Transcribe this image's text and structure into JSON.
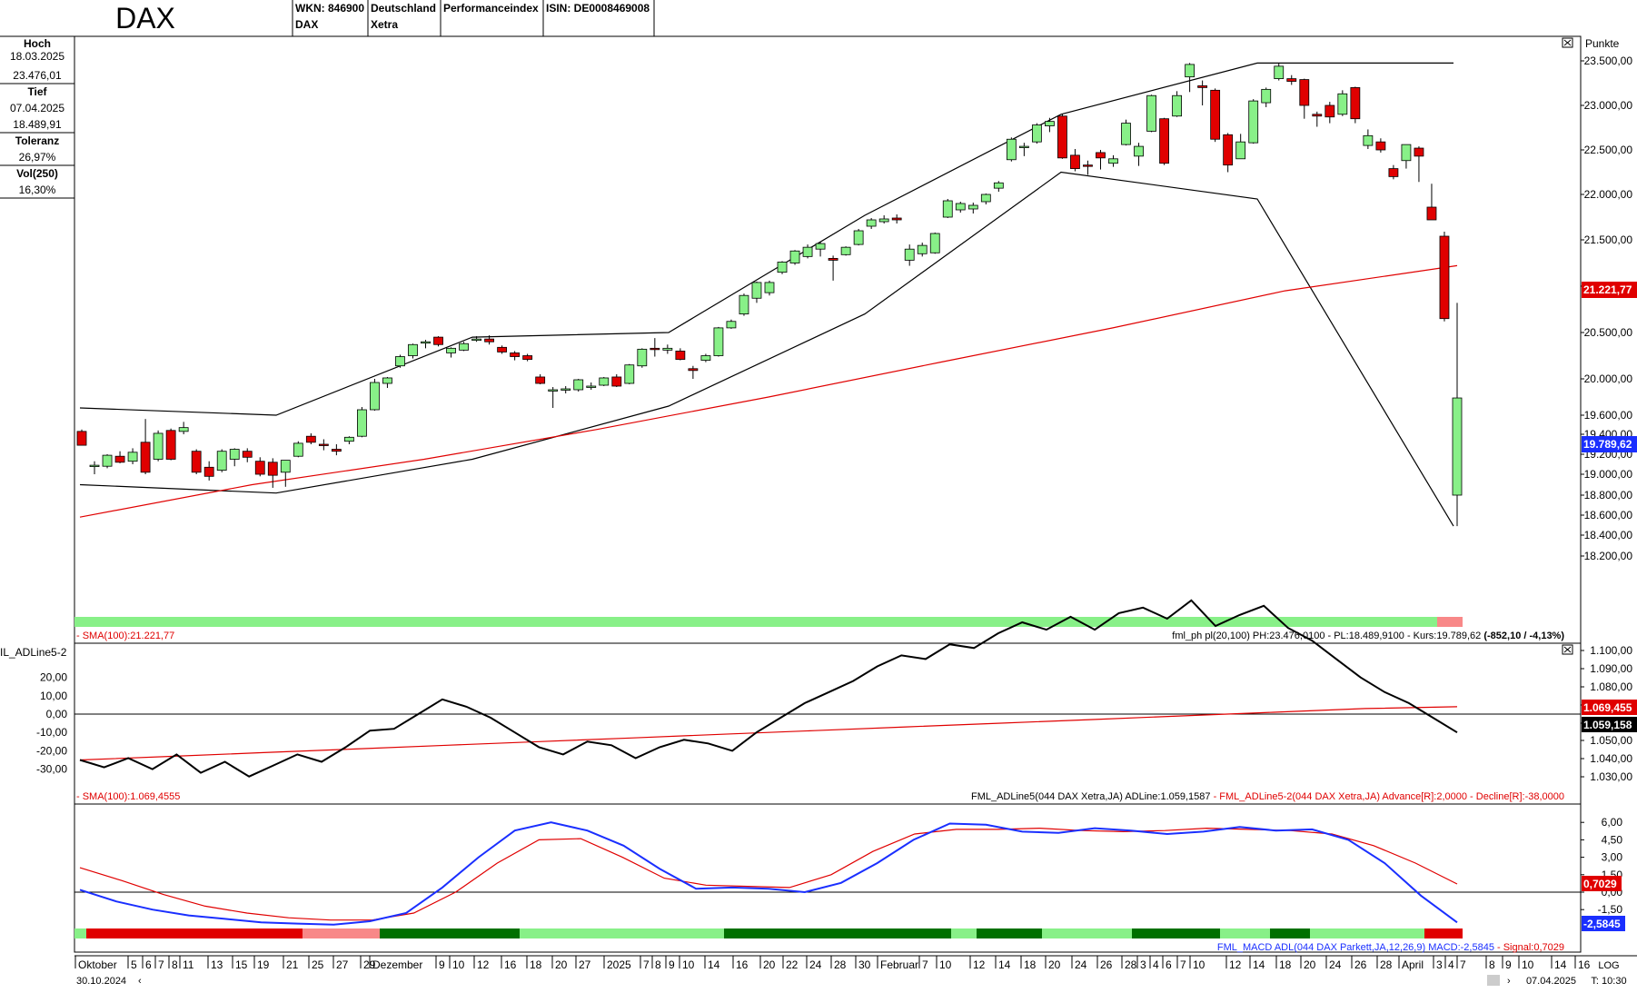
{
  "header": {
    "title": "DAX",
    "wkn": "WKN: 846900",
    "wkn_sub": "DAX",
    "country": "Deutschland",
    "exchange": "Xetra",
    "type": "Performanceindex",
    "isin": "ISIN: DE0008469008"
  },
  "info_panel": {
    "high_label": "Hoch",
    "high_date": "18.03.2025",
    "high_value": "23.476,01",
    "low_label": "Tief",
    "low_date": "07.04.2025",
    "low_value": "18.489,91",
    "tolerance_label": "Toleranz",
    "tolerance_value": "26,97%",
    "vol_label": "Vol(250)",
    "vol_value": "16,30%"
  },
  "price_panel": {
    "axis_unit": "Punkte",
    "ticks": [
      "23.500,00",
      "23.000,00",
      "22.500,00",
      "22.000,00",
      "21.500,00",
      "21.000,00",
      "20.500,00",
      "20.000,00",
      "19.600,00",
      "19.400,00",
      "19.200,00",
      "19.000,00",
      "18.800,00",
      "18.600,00",
      "18.400,00",
      "18.200,00"
    ],
    "sma_label": "21.221,77",
    "last_label": "19.789,62",
    "legend_left": "- SMA(100):21.221,77",
    "legend_right": "fml_ph pl(20,100) PH:23.476,0100 - PL:18.489,9100 - Kurs:19.789,62 ",
    "legend_change": "(-852,10 / -4,13%)",
    "colors": {
      "up": "#88f088",
      "down": "#e00000",
      "sma": "#e00000",
      "channel": "#000000"
    }
  },
  "adl_panel": {
    "left_title": "IL_ADLine5-2",
    "left_ticks": [
      "20,00",
      "10,00",
      "0,00",
      "-10,00",
      "-20,00",
      "-30,00"
    ],
    "right_ticks": [
      "1.100,00",
      "1.090,00",
      "1.080,00",
      "1.070,00",
      "1.060,00",
      "1.050,00",
      "1.040,00",
      "1.030,00"
    ],
    "sma_label": "1.069,455",
    "last_label": "1.059,158",
    "legend_left": "- SMA(100):1.069,4555",
    "legend_right_black": "FML_ADLine5(044 DAX Xetra,JA) ADLine:1.059,1587 ",
    "legend_right_red": "- FML_ADLine5-2(044 DAX Xetra,JA) Advance[R]:2,0000 - Decline[R]:-38,0000"
  },
  "macd_panel": {
    "ticks": [
      "6,00",
      "4,50",
      "3,00",
      "1,50",
      "0,00",
      "-1,50"
    ],
    "signal_label": "0,7029",
    "macd_label": "-2,5845",
    "legend_blue": "FML_MACD ADL(044 DAX Parkett,JA,12,26,9) MACD:-2,5845 ",
    "legend_red": "- Signal:0,7029"
  },
  "xaxis": {
    "labels": [
      "Oktober",
      "5",
      "6",
      "7",
      "8",
      "11",
      "13",
      "15",
      "19",
      "21",
      "25",
      "27",
      "29",
      "Dezember",
      "9",
      "10",
      "12",
      "16",
      "18",
      "20",
      "27",
      "2025",
      "7",
      "8",
      "9",
      "10",
      "14",
      "16",
      "20",
      "22",
      "24",
      "28",
      "30",
      "Februar",
      "7",
      "10",
      "12",
      "14",
      "18",
      "20",
      "24",
      "26",
      "28",
      "3",
      "4",
      "6",
      "7",
      "10",
      "12",
      "14",
      "18",
      "20",
      "24",
      "26",
      "28",
      "April",
      "3",
      "4",
      "7",
      "8",
      "9",
      "10",
      "14",
      "16"
    ],
    "start_date": "30.10.2024",
    "end_date": "07.04.2025",
    "scale_mode": "LOG",
    "timeframe": "T: 10:30"
  },
  "chart_data": [
    {
      "type": "candlestick",
      "title": "DAX",
      "ylabel": "Punkte",
      "ylim": [
        18200,
        23600
      ],
      "candles": [
        {
          "o": 19430,
          "h": 19450,
          "l": 19290,
          "c": 19290
        },
        {
          "o": 19080,
          "h": 19130,
          "l": 19000,
          "c": 19090
        },
        {
          "o": 19080,
          "h": 19200,
          "l": 19060,
          "c": 19190
        },
        {
          "o": 19180,
          "h": 19230,
          "l": 19110,
          "c": 19120
        },
        {
          "o": 19130,
          "h": 19260,
          "l": 19100,
          "c": 19220
        },
        {
          "o": 19320,
          "h": 19560,
          "l": 19000,
          "c": 19020
        },
        {
          "o": 19150,
          "h": 19440,
          "l": 19130,
          "c": 19410
        },
        {
          "o": 19440,
          "h": 19460,
          "l": 19140,
          "c": 19150
        },
        {
          "o": 19430,
          "h": 19530,
          "l": 19400,
          "c": 19470
        },
        {
          "o": 19230,
          "h": 19250,
          "l": 19000,
          "c": 19020
        },
        {
          "o": 19070,
          "h": 19130,
          "l": 18940,
          "c": 18980
        },
        {
          "o": 19040,
          "h": 19250,
          "l": 19020,
          "c": 19230
        },
        {
          "o": 19150,
          "h": 19260,
          "l": 19080,
          "c": 19250
        },
        {
          "o": 19230,
          "h": 19260,
          "l": 19120,
          "c": 19170
        },
        {
          "o": 19130,
          "h": 19170,
          "l": 18980,
          "c": 19000
        },
        {
          "o": 19120,
          "h": 19160,
          "l": 18870,
          "c": 18990
        },
        {
          "o": 19020,
          "h": 19140,
          "l": 18880,
          "c": 19140
        },
        {
          "o": 19180,
          "h": 19330,
          "l": 19170,
          "c": 19310
        },
        {
          "o": 19380,
          "h": 19410,
          "l": 19300,
          "c": 19320
        },
        {
          "o": 19300,
          "h": 19350,
          "l": 19240,
          "c": 19290
        },
        {
          "o": 19250,
          "h": 19300,
          "l": 19190,
          "c": 19230
        },
        {
          "o": 19330,
          "h": 19380,
          "l": 19300,
          "c": 19370
        },
        {
          "o": 19380,
          "h": 19690,
          "l": 19370,
          "c": 19660
        },
        {
          "o": 19660,
          "h": 20000,
          "l": 19650,
          "c": 19960
        },
        {
          "o": 19950,
          "h": 20020,
          "l": 19900,
          "c": 20010
        },
        {
          "o": 20140,
          "h": 20260,
          "l": 20120,
          "c": 20240
        },
        {
          "o": 20250,
          "h": 20380,
          "l": 20220,
          "c": 20370
        },
        {
          "o": 20390,
          "h": 20420,
          "l": 20330,
          "c": 20400
        },
        {
          "o": 20450,
          "h": 20460,
          "l": 20350,
          "c": 20370
        },
        {
          "o": 20280,
          "h": 20340,
          "l": 20230,
          "c": 20330
        },
        {
          "o": 20310,
          "h": 20400,
          "l": 20300,
          "c": 20380
        },
        {
          "o": 20430,
          "h": 20460,
          "l": 20400,
          "c": 20430
        },
        {
          "o": 20430,
          "h": 20470,
          "l": 20370,
          "c": 20400
        },
        {
          "o": 20340,
          "h": 20360,
          "l": 20270,
          "c": 20290
        },
        {
          "o": 20280,
          "h": 20300,
          "l": 20200,
          "c": 20240
        },
        {
          "o": 20250,
          "h": 20270,
          "l": 20190,
          "c": 20210
        },
        {
          "o": 20020,
          "h": 20050,
          "l": 19940,
          "c": 19950
        },
        {
          "o": 19870,
          "h": 19910,
          "l": 19680,
          "c": 19880
        },
        {
          "o": 19880,
          "h": 19920,
          "l": 19840,
          "c": 19890
        },
        {
          "o": 19880,
          "h": 20000,
          "l": 19860,
          "c": 19990
        },
        {
          "o": 19910,
          "h": 19960,
          "l": 19880,
          "c": 19920
        },
        {
          "o": 19930,
          "h": 20020,
          "l": 19920,
          "c": 20010
        },
        {
          "o": 20020,
          "h": 20050,
          "l": 19910,
          "c": 19920
        },
        {
          "o": 19950,
          "h": 20160,
          "l": 19940,
          "c": 20150
        },
        {
          "o": 20140,
          "h": 20330,
          "l": 20120,
          "c": 20320
        },
        {
          "o": 20330,
          "h": 20440,
          "l": 20240,
          "c": 20320
        },
        {
          "o": 20310,
          "h": 20370,
          "l": 20270,
          "c": 20330
        },
        {
          "o": 20300,
          "h": 20330,
          "l": 20200,
          "c": 20210
        },
        {
          "o": 20110,
          "h": 20140,
          "l": 20000,
          "c": 20090
        },
        {
          "o": 20200,
          "h": 20270,
          "l": 20180,
          "c": 20250
        },
        {
          "o": 20250,
          "h": 20560,
          "l": 20240,
          "c": 20550
        },
        {
          "o": 20550,
          "h": 20640,
          "l": 20540,
          "c": 20620
        },
        {
          "o": 20700,
          "h": 20920,
          "l": 20680,
          "c": 20900
        },
        {
          "o": 20870,
          "h": 21050,
          "l": 20820,
          "c": 21040
        },
        {
          "o": 20930,
          "h": 21060,
          "l": 20900,
          "c": 21040
        },
        {
          "o": 21150,
          "h": 21270,
          "l": 21130,
          "c": 21260
        },
        {
          "o": 21250,
          "h": 21390,
          "l": 21230,
          "c": 21380
        },
        {
          "o": 21320,
          "h": 21450,
          "l": 21300,
          "c": 21420
        },
        {
          "o": 21400,
          "h": 21480,
          "l": 21320,
          "c": 21460
        },
        {
          "o": 21300,
          "h": 21330,
          "l": 21060,
          "c": 21280
        },
        {
          "o": 21340,
          "h": 21430,
          "l": 21330,
          "c": 21420
        },
        {
          "o": 21450,
          "h": 21620,
          "l": 21440,
          "c": 21600
        },
        {
          "o": 21650,
          "h": 21740,
          "l": 21620,
          "c": 21720
        },
        {
          "o": 21700,
          "h": 21770,
          "l": 21680,
          "c": 21730
        },
        {
          "o": 21740,
          "h": 21780,
          "l": 21680,
          "c": 21720
        },
        {
          "o": 21280,
          "h": 21450,
          "l": 21220,
          "c": 21400
        },
        {
          "o": 21350,
          "h": 21470,
          "l": 21320,
          "c": 21440
        },
        {
          "o": 21360,
          "h": 21580,
          "l": 21350,
          "c": 21570
        },
        {
          "o": 21750,
          "h": 21950,
          "l": 21740,
          "c": 21930
        },
        {
          "o": 21830,
          "h": 21920,
          "l": 21800,
          "c": 21900
        },
        {
          "o": 21840,
          "h": 21910,
          "l": 21790,
          "c": 21880
        },
        {
          "o": 21920,
          "h": 22010,
          "l": 21890,
          "c": 22000
        },
        {
          "o": 22070,
          "h": 22150,
          "l": 22030,
          "c": 22130
        },
        {
          "o": 22390,
          "h": 22640,
          "l": 22370,
          "c": 22620
        },
        {
          "o": 22530,
          "h": 22580,
          "l": 22430,
          "c": 22540
        },
        {
          "o": 22590,
          "h": 22800,
          "l": 22570,
          "c": 22780
        },
        {
          "o": 22770,
          "h": 22860,
          "l": 22700,
          "c": 22820
        },
        {
          "o": 22880,
          "h": 22900,
          "l": 22400,
          "c": 22410
        },
        {
          "o": 22440,
          "h": 22510,
          "l": 22260,
          "c": 22290
        },
        {
          "o": 22330,
          "h": 22380,
          "l": 22220,
          "c": 22320
        },
        {
          "o": 22470,
          "h": 22500,
          "l": 22280,
          "c": 22410
        },
        {
          "o": 22350,
          "h": 22440,
          "l": 22310,
          "c": 22400
        },
        {
          "o": 22560,
          "h": 22840,
          "l": 22550,
          "c": 22800
        },
        {
          "o": 22430,
          "h": 22580,
          "l": 22320,
          "c": 22540
        },
        {
          "o": 22710,
          "h": 23120,
          "l": 22700,
          "c": 23110
        },
        {
          "o": 22850,
          "h": 22860,
          "l": 22330,
          "c": 22350
        },
        {
          "o": 22880,
          "h": 23160,
          "l": 22870,
          "c": 23110
        },
        {
          "o": 23320,
          "h": 23476,
          "l": 23150,
          "c": 23460
        },
        {
          "o": 23220,
          "h": 23280,
          "l": 23000,
          "c": 23200
        },
        {
          "o": 23170,
          "h": 23190,
          "l": 22590,
          "c": 22620
        },
        {
          "o": 22670,
          "h": 22690,
          "l": 22250,
          "c": 22330
        },
        {
          "o": 22400,
          "h": 22680,
          "l": 22400,
          "c": 22590
        },
        {
          "o": 22580,
          "h": 23070,
          "l": 22570,
          "c": 23050
        },
        {
          "o": 23030,
          "h": 23200,
          "l": 22980,
          "c": 23180
        },
        {
          "o": 23300,
          "h": 23476,
          "l": 23280,
          "c": 23440
        },
        {
          "o": 23300,
          "h": 23340,
          "l": 23230,
          "c": 23270
        },
        {
          "o": 23290,
          "h": 23300,
          "l": 22850,
          "c": 23000
        },
        {
          "o": 22900,
          "h": 22930,
          "l": 22760,
          "c": 22880
        },
        {
          "o": 23000,
          "h": 23040,
          "l": 22800,
          "c": 22870
        },
        {
          "o": 22900,
          "h": 23170,
          "l": 22880,
          "c": 23130
        },
        {
          "o": 23200,
          "h": 23210,
          "l": 22800,
          "c": 22850
        },
        {
          "o": 22550,
          "h": 22730,
          "l": 22510,
          "c": 22660
        },
        {
          "o": 22590,
          "h": 22630,
          "l": 22470,
          "c": 22500
        },
        {
          "o": 22290,
          "h": 22330,
          "l": 22170,
          "c": 22200
        },
        {
          "o": 22380,
          "h": 22560,
          "l": 22290,
          "c": 22560
        },
        {
          "o": 22520,
          "h": 22540,
          "l": 22140,
          "c": 22430
        },
        {
          "o": 21860,
          "h": 22120,
          "l": 21720,
          "c": 21720
        },
        {
          "o": 21540,
          "h": 21590,
          "l": 20620,
          "c": 20650
        },
        {
          "o": 18800,
          "h": 20820,
          "l": 18489.91,
          "c": 19789.62
        }
      ],
      "sma100": [
        18580,
        18900,
        19150,
        19450,
        19800,
        20180,
        20550,
        20950,
        21221.77
      ],
      "upper_channel": [
        19680,
        19600,
        20450,
        20500,
        21770,
        22900,
        23476,
        23476
      ],
      "lower_channel": [
        18900,
        18820,
        19150,
        19700,
        20700,
        22250,
        21950,
        18489.91
      ]
    },
    {
      "type": "line",
      "title": "FML_ADLine5",
      "series": [
        {
          "name": "ADLine",
          "values": [
            -25,
            -29,
            -24,
            -30,
            -22,
            -32,
            -26,
            -34,
            -28,
            -22,
            -26,
            -18,
            -9,
            -8,
            0,
            8,
            4,
            -2,
            -10,
            -18,
            -22,
            -15,
            -17,
            -24,
            -18,
            -14,
            -16,
            -20,
            -10,
            -2,
            6,
            12,
            18,
            26,
            32,
            30,
            38,
            36,
            44,
            50,
            46,
            53,
            46,
            55,
            58,
            52,
            62,
            48,
            54,
            59,
            47,
            40,
            30,
            20,
            12,
            6,
            -2,
            -10
          ]
        },
        {
          "name": "SMA(100)",
          "values": [
            -25,
            -23,
            -21,
            -19,
            -17,
            -15,
            -13,
            -11,
            -9,
            -7,
            -5,
            -3,
            -1,
            1,
            3,
            4
          ]
        }
      ],
      "ylim": [
        -38,
        62
      ]
    },
    {
      "type": "line",
      "title": "FML_MACD ADL(044 DAX Parkett,JA,12,26,9)",
      "series": [
        {
          "name": "MACD",
          "values": [
            0.2,
            -0.8,
            -1.5,
            -2.0,
            -2.3,
            -2.6,
            -2.7,
            -2.8,
            -2.5,
            -1.8,
            0.4,
            3.0,
            5.3,
            6.0,
            5.3,
            4.0,
            2.0,
            0.3,
            0.4,
            0.3,
            0.0,
            0.8,
            2.5,
            4.5,
            5.9,
            5.8,
            5.2,
            5.1,
            5.5,
            5.3,
            5.0,
            5.2,
            5.6,
            5.3,
            5.4,
            4.5,
            2.5,
            -0.3,
            -2.6
          ]
        },
        {
          "name": "Signal",
          "values": [
            2.1,
            1.0,
            -0.2,
            -1.2,
            -1.8,
            -2.2,
            -2.4,
            -2.4,
            -1.8,
            0.0,
            2.5,
            4.5,
            4.6,
            3.0,
            1.2,
            0.6,
            0.5,
            0.4,
            1.5,
            3.5,
            5.0,
            5.4,
            5.4,
            5.5,
            5.3,
            5.2,
            5.3,
            5.5,
            5.4,
            5.3,
            5.0,
            4.0,
            2.5,
            0.7
          ]
        }
      ],
      "ylim": [
        -3.0,
        7.0
      ]
    }
  ]
}
